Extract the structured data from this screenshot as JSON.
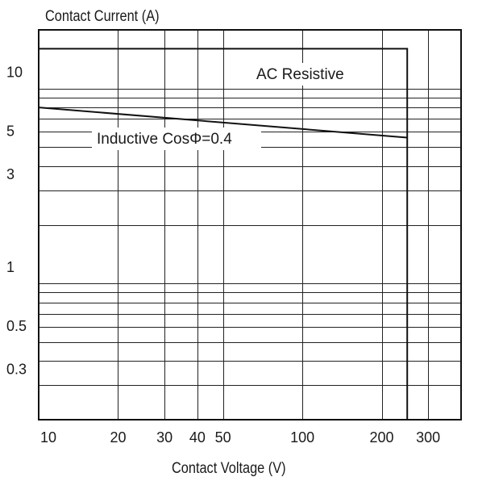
{
  "chart_data": {
    "type": "line",
    "title": "",
    "xlabel": "Contact Voltage (V)",
    "ylabel": "Contact Current (A)",
    "xscale": "log",
    "yscale": "log",
    "xlim": [
      10,
      400
    ],
    "ylim": [
      0.2,
      20
    ],
    "grid": true,
    "x_ticks": [
      10,
      20,
      30,
      40,
      50,
      100,
      200,
      300
    ],
    "x_tick_labels": [
      "10",
      "20",
      "30",
      "40",
      "50",
      "100",
      "200",
      "300"
    ],
    "y_ticks": [
      0.3,
      0.5,
      1,
      3,
      5,
      10
    ],
    "y_tick_labels": [
      "0.3",
      "0.5",
      "1",
      "3",
      "5",
      "10"
    ],
    "series": [
      {
        "name": "AC Resistive",
        "x": [
          10,
          250,
          250
        ],
        "y": [
          16,
          16,
          0.2
        ]
      },
      {
        "name": "Inductive CosΦ=0.4",
        "x": [
          10,
          250
        ],
        "y": [
          8,
          5.6
        ]
      }
    ],
    "annotations": [
      "AC Resistive",
      "Inductive CosΦ=0.4"
    ]
  }
}
